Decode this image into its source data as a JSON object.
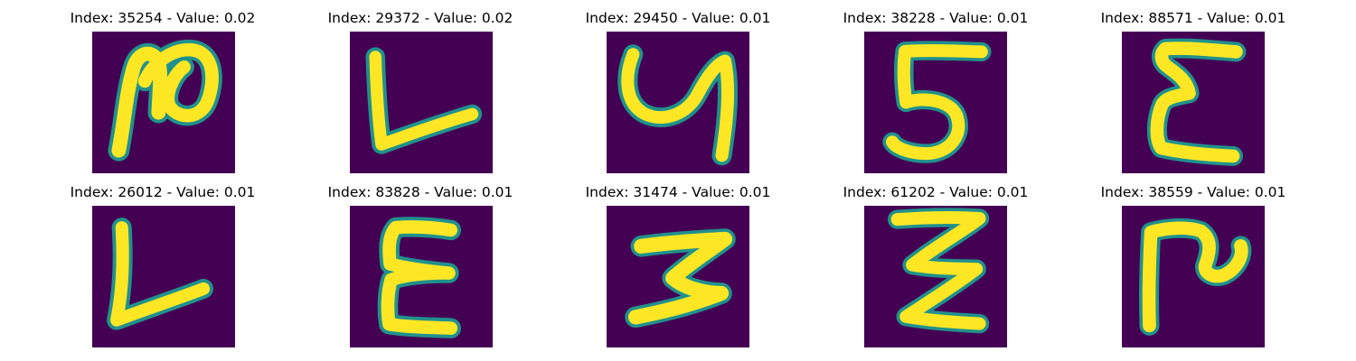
{
  "figure": {
    "background_color": "#ffffff",
    "tile_background_color": "#440154",
    "stroke_color": "#fde725",
    "edge_color": "#21918c",
    "colormap": "viridis"
  },
  "panels": [
    {
      "title": "Index: 35254 - Value: 0.02",
      "index": 35254,
      "value": 0.02,
      "glyph": "glyph-a"
    },
    {
      "title": "Index: 29372 - Value: 0.02",
      "index": 29372,
      "value": 0.02,
      "glyph": "glyph-b"
    },
    {
      "title": "Index: 29450 - Value: 0.01",
      "index": 29450,
      "value": 0.01,
      "glyph": "glyph-c"
    },
    {
      "title": "Index: 38228 - Value: 0.01",
      "index": 38228,
      "value": 0.01,
      "glyph": "glyph-d"
    },
    {
      "title": "Index: 88571 - Value: 0.01",
      "index": 88571,
      "value": 0.01,
      "glyph": "glyph-e"
    },
    {
      "title": "Index: 26012 - Value: 0.01",
      "index": 26012,
      "value": 0.01,
      "glyph": "glyph-f"
    },
    {
      "title": "Index: 83828 - Value: 0.01",
      "index": 83828,
      "value": 0.01,
      "glyph": "glyph-g"
    },
    {
      "title": "Index: 31474 - Value: 0.01",
      "index": 31474,
      "value": 0.01,
      "glyph": "glyph-h"
    },
    {
      "title": "Index: 61202 - Value: 0.01",
      "index": 61202,
      "value": 0.01,
      "glyph": "glyph-i"
    },
    {
      "title": "Index: 38559 - Value: 0.01",
      "index": 38559,
      "value": 0.01,
      "glyph": "glyph-j"
    }
  ]
}
